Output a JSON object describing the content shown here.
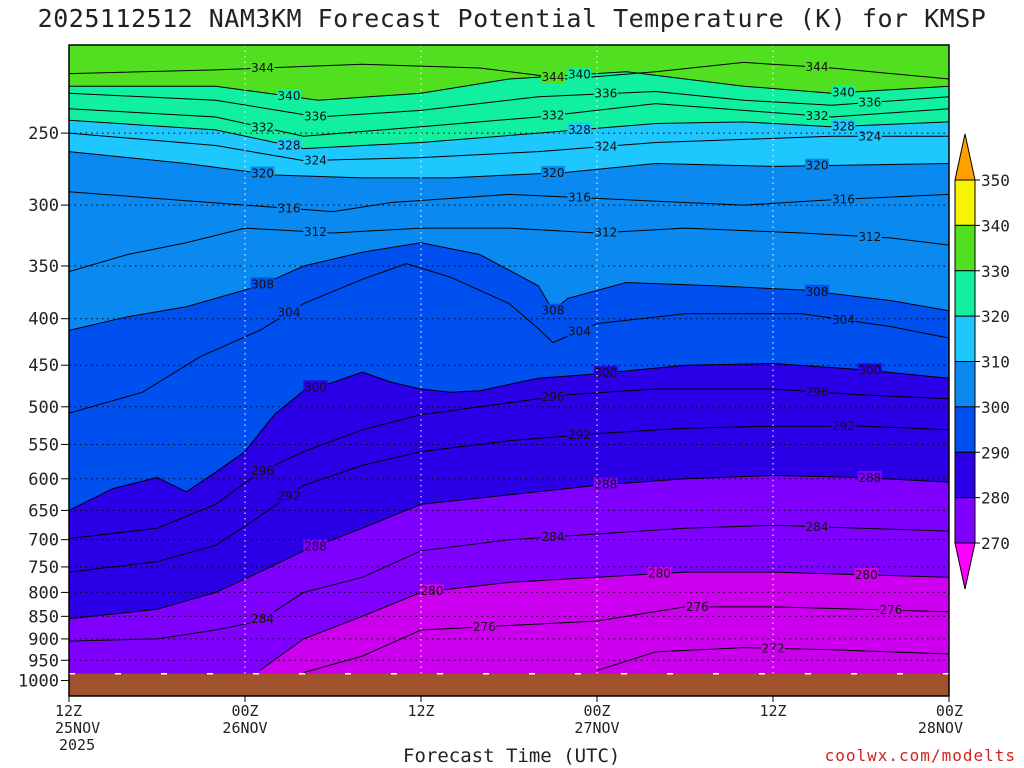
{
  "title": "2025112512 NAM3KM Forecast Potential Temperature (K) for KMSP",
  "credit": "coolwx.com/modelts",
  "chart_data": {
    "type": "heatmap",
    "title": "2025112512 NAM3KM Forecast Potential Temperature (K) for KMSP",
    "xlabel": "Forecast Time (UTC)",
    "ylabel": "",
    "x_ticks": [
      {
        "hour": 0,
        "label": "12Z",
        "date": "25NOV",
        "year": "2025"
      },
      {
        "hour": 12,
        "label": "00Z",
        "date": "26NOV",
        "year": ""
      },
      {
        "hour": 24,
        "label": "12Z",
        "date": "",
        "year": ""
      },
      {
        "hour": 36,
        "label": "00Z",
        "date": "27NOV",
        "year": ""
      },
      {
        "hour": 48,
        "label": "12Z",
        "date": "",
        "year": ""
      },
      {
        "hour": 60,
        "label": "00Z",
        "date": "28NOV",
        "year": ""
      }
    ],
    "xlim_hours": [
      0,
      60
    ],
    "y_ticks": [
      250,
      300,
      350,
      400,
      450,
      500,
      550,
      600,
      650,
      700,
      750,
      800,
      850,
      900,
      950,
      1000
    ],
    "ylim_hPa": [
      200,
      1040
    ],
    "y_scale": "log-pressure (inverted)",
    "grid": true,
    "surface_pressure_hPa": 983,
    "colorbar": {
      "levels": [
        270,
        280,
        290,
        300,
        310,
        320,
        330,
        340,
        350
      ],
      "colors": [
        "#ff00ff",
        "#cc00ee",
        "#8000ff",
        "#2b00e6",
        "#0050f0",
        "#0a8af0",
        "#1ec8ff",
        "#10f0a0",
        "#50e020",
        "#f5f500",
        "#ffa000"
      ]
    },
    "isentropes": [
      {
        "theta": 344,
        "points": [
          [
            0,
            215
          ],
          [
            10,
            213
          ],
          [
            20,
            210
          ],
          [
            28,
            212
          ],
          [
            34,
            218
          ],
          [
            40,
            214
          ],
          [
            46,
            209
          ],
          [
            52,
            212
          ],
          [
            60,
            218
          ]
        ]
      },
      {
        "theta": 340,
        "points": [
          [
            0,
            222
          ],
          [
            10,
            222
          ],
          [
            17,
            230
          ],
          [
            24,
            226
          ],
          [
            30,
            218
          ],
          [
            38,
            214
          ],
          [
            46,
            222
          ],
          [
            52,
            226
          ],
          [
            60,
            222
          ]
        ]
      },
      {
        "theta": 336,
        "points": [
          [
            0,
            226
          ],
          [
            10,
            230
          ],
          [
            17,
            240
          ],
          [
            24,
            236
          ],
          [
            32,
            228
          ],
          [
            40,
            225
          ],
          [
            46,
            230
          ],
          [
            52,
            233
          ],
          [
            60,
            228
          ]
        ]
      },
      {
        "theta": 332,
        "points": [
          [
            0,
            235
          ],
          [
            10,
            240
          ],
          [
            16,
            252
          ],
          [
            24,
            246
          ],
          [
            32,
            240
          ],
          [
            40,
            232
          ],
          [
            46,
            236
          ],
          [
            52,
            240
          ],
          [
            60,
            235
          ]
        ]
      },
      {
        "theta": 328,
        "points": [
          [
            0,
            242
          ],
          [
            10,
            248
          ],
          [
            16,
            260
          ],
          [
            24,
            256
          ],
          [
            32,
            250
          ],
          [
            40,
            244
          ],
          [
            46,
            243
          ],
          [
            52,
            246
          ],
          [
            60,
            243
          ]
        ]
      },
      {
        "theta": 324,
        "points": [
          [
            0,
            250
          ],
          [
            10,
            258
          ],
          [
            16,
            268
          ],
          [
            24,
            266
          ],
          [
            32,
            262
          ],
          [
            40,
            256
          ],
          [
            46,
            254
          ],
          [
            52,
            252
          ],
          [
            60,
            252
          ]
        ]
      },
      {
        "theta": 320,
        "points": [
          [
            0,
            262
          ],
          [
            8,
            270
          ],
          [
            14,
            278
          ],
          [
            20,
            280
          ],
          [
            26,
            280
          ],
          [
            34,
            276
          ],
          [
            40,
            270
          ],
          [
            48,
            272
          ],
          [
            60,
            270
          ]
        ]
      },
      {
        "theta": 316,
        "points": [
          [
            0,
            290
          ],
          [
            6,
            295
          ],
          [
            12,
            300
          ],
          [
            18,
            305
          ],
          [
            22,
            298
          ],
          [
            30,
            292
          ],
          [
            38,
            296
          ],
          [
            46,
            300
          ],
          [
            52,
            296
          ],
          [
            60,
            292
          ]
        ]
      },
      {
        "theta": 312,
        "points": [
          [
            0,
            355
          ],
          [
            4,
            340
          ],
          [
            8,
            330
          ],
          [
            12,
            318
          ],
          [
            18,
            322
          ],
          [
            24,
            318
          ],
          [
            30,
            318
          ],
          [
            36,
            322
          ],
          [
            42,
            318
          ],
          [
            50,
            322
          ],
          [
            56,
            326
          ],
          [
            60,
            332
          ]
        ]
      },
      {
        "theta": 308,
        "points": [
          [
            0,
            412
          ],
          [
            4,
            398
          ],
          [
            8,
            388
          ],
          [
            13,
            368
          ],
          [
            16,
            350
          ],
          [
            20,
            338
          ],
          [
            24,
            330
          ],
          [
            28,
            340
          ],
          [
            32,
            368
          ],
          [
            33,
            392
          ],
          [
            34,
            380
          ],
          [
            38,
            365
          ],
          [
            44,
            368
          ],
          [
            50,
            372
          ],
          [
            56,
            382
          ],
          [
            60,
            392
          ]
        ]
      },
      {
        "theta": 304,
        "points": [
          [
            0,
            508
          ],
          [
            5,
            482
          ],
          [
            9,
            440
          ],
          [
            13,
            412
          ],
          [
            16,
            385
          ],
          [
            20,
            362
          ],
          [
            23,
            348
          ],
          [
            26,
            360
          ],
          [
            30,
            385
          ],
          [
            32,
            410
          ],
          [
            33,
            425
          ],
          [
            36,
            405
          ],
          [
            42,
            395
          ],
          [
            50,
            395
          ],
          [
            56,
            408
          ],
          [
            60,
            420
          ]
        ]
      },
      {
        "theta": 300,
        "points": [
          [
            0,
            650
          ],
          [
            3,
            615
          ],
          [
            6,
            598
          ],
          [
            8,
            620
          ],
          [
            10,
            590
          ],
          [
            12,
            560
          ],
          [
            14,
            510
          ],
          [
            16,
            480
          ],
          [
            18,
            470
          ],
          [
            20,
            458
          ],
          [
            22,
            470
          ],
          [
            24,
            478
          ],
          [
            26,
            482
          ],
          [
            28,
            480
          ],
          [
            32,
            465
          ],
          [
            36,
            460
          ],
          [
            42,
            450
          ],
          [
            48,
            448
          ],
          [
            54,
            455
          ],
          [
            60,
            465
          ]
        ]
      },
      {
        "theta": 296,
        "points": [
          [
            0,
            698
          ],
          [
            6,
            680
          ],
          [
            10,
            640
          ],
          [
            13,
            590
          ],
          [
            16,
            560
          ],
          [
            20,
            530
          ],
          [
            24,
            510
          ],
          [
            28,
            500
          ],
          [
            34,
            485
          ],
          [
            40,
            478
          ],
          [
            48,
            478
          ],
          [
            54,
            485
          ],
          [
            60,
            490
          ]
        ]
      },
      {
        "theta": 292,
        "points": [
          [
            0,
            760
          ],
          [
            6,
            740
          ],
          [
            10,
            710
          ],
          [
            13,
            660
          ],
          [
            16,
            610
          ],
          [
            20,
            580
          ],
          [
            24,
            560
          ],
          [
            30,
            545
          ],
          [
            36,
            535
          ],
          [
            42,
            528
          ],
          [
            48,
            525
          ],
          [
            54,
            525
          ],
          [
            60,
            530
          ]
        ]
      },
      {
        "theta": 288,
        "points": [
          [
            0,
            855
          ],
          [
            6,
            835
          ],
          [
            10,
            800
          ],
          [
            13,
            760
          ],
          [
            16,
            720
          ],
          [
            20,
            680
          ],
          [
            24,
            640
          ],
          [
            30,
            625
          ],
          [
            36,
            610
          ],
          [
            42,
            600
          ],
          [
            48,
            595
          ],
          [
            54,
            598
          ],
          [
            60,
            605
          ]
        ]
      },
      {
        "theta": 284,
        "points": [
          [
            0,
            905
          ],
          [
            6,
            900
          ],
          [
            10,
            880
          ],
          [
            13,
            860
          ],
          [
            16,
            800
          ],
          [
            20,
            770
          ],
          [
            24,
            720
          ],
          [
            30,
            700
          ],
          [
            36,
            690
          ],
          [
            42,
            680
          ],
          [
            48,
            675
          ],
          [
            54,
            680
          ],
          [
            60,
            685
          ]
        ]
      },
      {
        "theta": 280,
        "points": [
          [
            13,
            975
          ],
          [
            16,
            900
          ],
          [
            20,
            850
          ],
          [
            24,
            800
          ],
          [
            30,
            780
          ],
          [
            36,
            770
          ],
          [
            42,
            760
          ],
          [
            48,
            760
          ],
          [
            54,
            765
          ],
          [
            60,
            770
          ]
        ]
      },
      {
        "theta": 276,
        "points": [
          [
            16,
            980
          ],
          [
            20,
            940
          ],
          [
            24,
            880
          ],
          [
            30,
            870
          ],
          [
            36,
            860
          ],
          [
            42,
            830
          ],
          [
            48,
            830
          ],
          [
            54,
            835
          ],
          [
            60,
            840
          ]
        ]
      },
      {
        "theta": 272,
        "points": [
          [
            36,
            975
          ],
          [
            40,
            930
          ],
          [
            46,
            920
          ],
          [
            52,
            925
          ],
          [
            56,
            930
          ],
          [
            60,
            935
          ]
        ]
      }
    ]
  }
}
